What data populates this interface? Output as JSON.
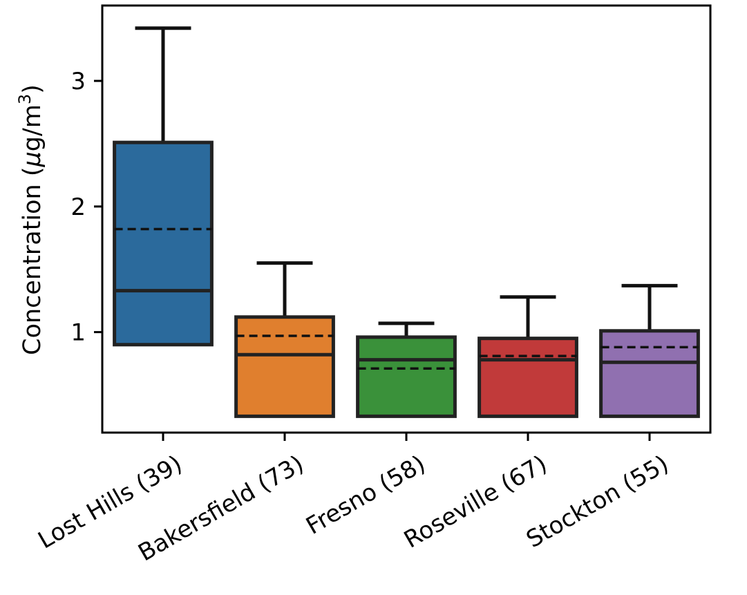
{
  "chart_data": {
    "type": "box",
    "ylabel": "Concentration (μg/m³)",
    "ylabel_parts": {
      "main": "Concentration (",
      "mu": "μ",
      "unit": "g/m",
      "sup": "3",
      "close": ")"
    },
    "y_ticks": [
      1,
      2,
      3
    ],
    "y_tick_labels": [
      "1",
      "2",
      "3"
    ],
    "ylim": [
      0.2,
      3.6
    ],
    "grid": false,
    "legend": "none",
    "categories": [
      "Lost Hills (39)",
      "Bakersfield (73)",
      "Fresno (58)",
      "Roseville (67)",
      "Stockton (55)"
    ],
    "colors": [
      "#2b6a9c",
      "#e07f2e",
      "#3a913a",
      "#c13a3a",
      "#9070b0"
    ],
    "boxes": [
      {
        "whisker_low": 0.9,
        "q1": 0.9,
        "median": 1.33,
        "mean": 1.82,
        "q3": 2.51,
        "whisker_high": 3.42
      },
      {
        "whisker_low": 0.33,
        "q1": 0.33,
        "median": 0.82,
        "mean": 0.97,
        "q3": 1.12,
        "whisker_high": 1.55
      },
      {
        "whisker_low": 0.33,
        "q1": 0.33,
        "median": 0.78,
        "mean": 0.71,
        "q3": 0.96,
        "whisker_high": 1.07
      },
      {
        "whisker_low": 0.33,
        "q1": 0.33,
        "median": 0.78,
        "mean": 0.81,
        "q3": 0.95,
        "whisker_high": 1.28
      },
      {
        "whisker_low": 0.33,
        "q1": 0.33,
        "median": 0.76,
        "mean": 0.88,
        "q3": 1.01,
        "whisker_high": 1.37
      }
    ]
  }
}
